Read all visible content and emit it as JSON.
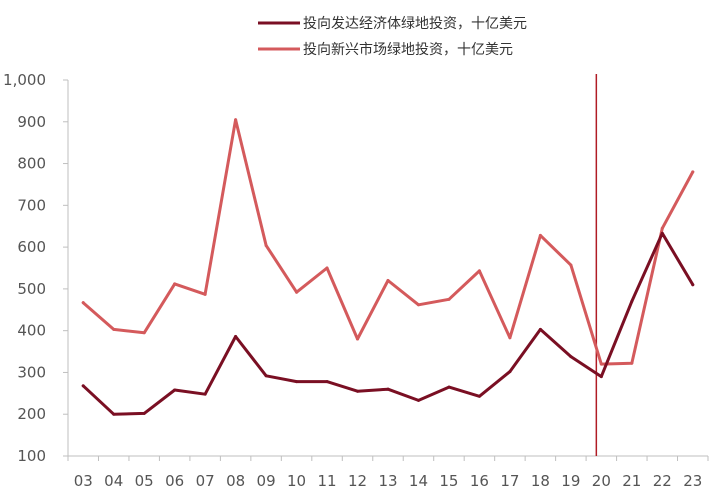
{
  "chart_data": {
    "type": "line",
    "categories": [
      "03",
      "04",
      "05",
      "06",
      "07",
      "08",
      "09",
      "10",
      "11",
      "12",
      "13",
      "14",
      "15",
      "16",
      "17",
      "18",
      "19",
      "20",
      "21",
      "22",
      "23"
    ],
    "series": [
      {
        "name": "投向发达经济体绿地投资，十亿美元",
        "color": "#7a0f23",
        "values": [
          268,
          200,
          202,
          258,
          248,
          386,
          292,
          278,
          278,
          255,
          260,
          233,
          265,
          243,
          302,
          403,
          338,
          290,
          470,
          633,
          510
        ]
      },
      {
        "name": "投向新兴市场绿地投资，十亿美元",
        "color": "#d45a5c",
        "values": [
          467,
          403,
          395,
          512,
          487,
          905,
          604,
          492,
          550,
          380,
          520,
          462,
          475,
          543,
          383,
          628,
          557,
          320,
          322,
          645,
          780
        ]
      }
    ],
    "ylim": [
      100,
      1000
    ],
    "yticks": [
      "100",
      "200",
      "300",
      "400",
      "500",
      "600",
      "700",
      "800",
      "900",
      "1,000"
    ],
    "marker_line": {
      "category": "20",
      "color": "#b01c25"
    },
    "legend_position": "top-center",
    "grid": false
  }
}
